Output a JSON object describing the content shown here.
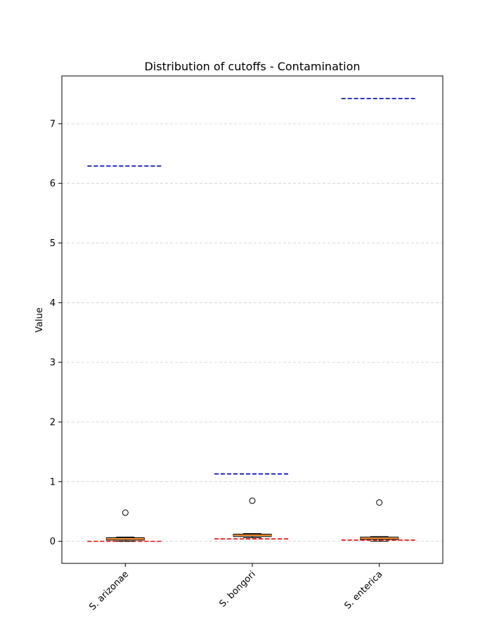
{
  "chart_data": {
    "type": "box",
    "title": "Distribution of cutoffs - Contamination",
    "xlabel": "",
    "ylabel": "Value",
    "ylim": [
      -0.37,
      7.8
    ],
    "yticks": [
      0,
      1,
      2,
      3,
      4,
      5,
      6,
      7
    ],
    "categories": [
      "S. arizonae",
      "S. bongori",
      "S. enterica"
    ],
    "grid": {
      "y": true,
      "x": false,
      "style": "dashed"
    },
    "box_fill_color": "#d2b48c",
    "median_color": "#ff7f0e",
    "boxes": [
      {
        "category": "S. arizonae",
        "whislo": 0.0,
        "q1": 0.02,
        "median": 0.04,
        "q3": 0.06,
        "whishi": 0.07,
        "fliers": [
          0.48
        ]
      },
      {
        "category": "S. bongori",
        "whislo": 0.06,
        "q1": 0.08,
        "median": 0.1,
        "q3": 0.12,
        "whishi": 0.13,
        "fliers": [
          0.68
        ]
      },
      {
        "category": "S. enterica",
        "whislo": 0.0,
        "q1": 0.03,
        "median": 0.05,
        "q3": 0.07,
        "whishi": 0.08,
        "fliers": [
          0.65
        ]
      }
    ],
    "upper_reference_lines": {
      "color": "#0000cd",
      "style": "dashed",
      "values": [
        6.29,
        1.13,
        7.42
      ]
    },
    "lower_reference_lines": {
      "color": "#ff0000",
      "style": "dashed",
      "values": [
        0.0,
        0.04,
        0.02
      ]
    }
  }
}
